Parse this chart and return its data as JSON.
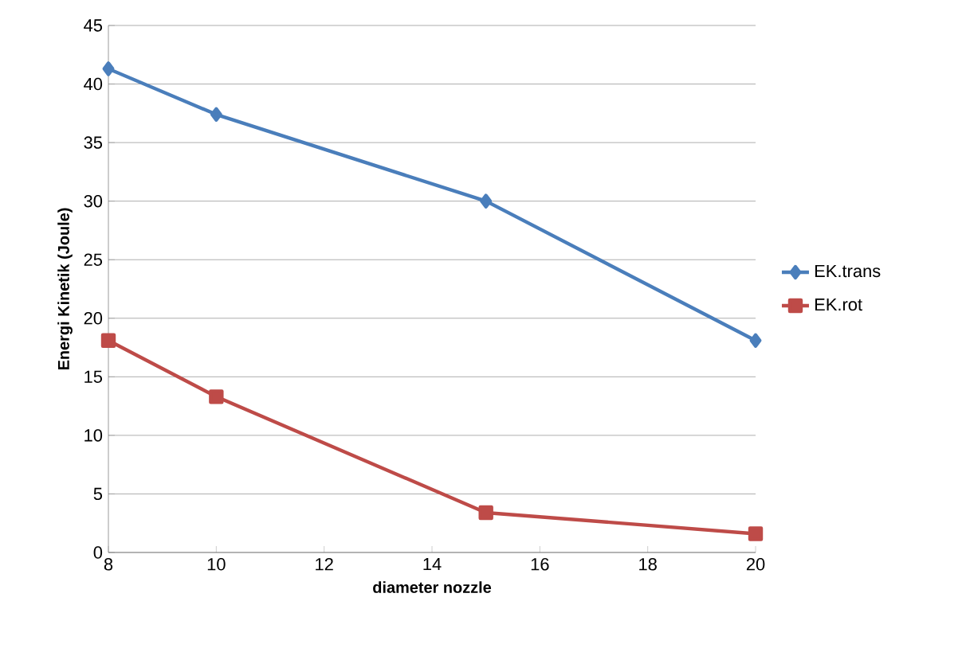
{
  "chart_data": {
    "type": "line",
    "xlabel": "diameter nozzle",
    "ylabel": "Energi Kinetik (Joule)",
    "x": [
      8,
      10,
      15,
      20
    ],
    "series": [
      {
        "name": "EK.trans",
        "color": "#4a7ebb",
        "marker": "diamond",
        "values": [
          41.3,
          37.4,
          30.0,
          18.1
        ]
      },
      {
        "name": "EK.rot",
        "color": "#be4b48",
        "marker": "square",
        "values": [
          18.1,
          13.3,
          3.4,
          1.6
        ]
      }
    ],
    "xlim": [
      8,
      20
    ],
    "xticks": [
      8,
      10,
      12,
      14,
      16,
      18,
      20
    ],
    "ylim": [
      0,
      45
    ],
    "yticks": [
      0,
      5,
      10,
      15,
      20,
      25,
      30,
      35,
      40,
      45
    ],
    "grid": "y",
    "legend": "right",
    "line_style": "solid"
  }
}
